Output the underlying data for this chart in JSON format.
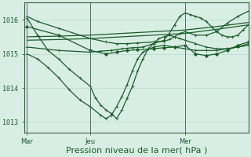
{
  "background_color": "#d8eee4",
  "grid_color": "#b8d8cc",
  "line_color": "#1a5c28",
  "xlabel": "Pression niveau de la mer( hPa )",
  "xlabel_fontsize": 8,
  "yticks": [
    1013,
    1014,
    1015,
    1016
  ],
  "ylim": [
    1012.7,
    1016.5
  ],
  "xtick_labels": [
    "Mar",
    "Jeu",
    "Mer"
  ],
  "xtick_positions": [
    0,
    48,
    120
  ],
  "xlim": [
    -2,
    168
  ],
  "vline_positions": [
    0,
    48,
    120
  ],
  "series": [
    {
      "x": [
        0,
        8,
        16,
        24,
        32,
        40,
        48,
        52,
        56,
        60,
        64,
        68,
        72,
        76,
        80,
        84,
        88,
        92,
        96,
        100,
        104,
        108,
        112,
        116,
        120,
        128,
        136,
        144,
        152,
        160,
        168
      ],
      "y": [
        1016.05,
        1015.55,
        1015.1,
        1014.85,
        1014.55,
        1014.3,
        1014.05,
        1013.7,
        1013.5,
        1013.35,
        1013.25,
        1013.1,
        1013.35,
        1013.7,
        1014.05,
        1014.5,
        1014.85,
        1015.15,
        1015.3,
        1015.45,
        1015.5,
        1015.55,
        1015.5,
        1015.45,
        1015.4,
        1015.3,
        1015.2,
        1015.15,
        1015.15,
        1015.2,
        1015.3
      ],
      "marker": "+"
    },
    {
      "x": [
        0,
        8,
        16,
        24,
        32,
        40,
        48,
        56,
        60,
        64,
        68,
        72,
        76,
        80,
        84,
        88,
        96,
        104,
        112,
        120,
        128,
        136,
        144,
        152,
        160,
        168
      ],
      "y": [
        1015.0,
        1014.85,
        1014.6,
        1014.3,
        1013.95,
        1013.65,
        1013.45,
        1013.2,
        1013.1,
        1013.2,
        1013.45,
        1013.75,
        1014.1,
        1014.5,
        1014.85,
        1015.05,
        1015.2,
        1015.25,
        1015.2,
        1015.15,
        1015.1,
        1015.1,
        1015.1,
        1015.15,
        1015.2,
        1015.25
      ],
      "marker": "+"
    },
    {
      "x": [
        0,
        24,
        48,
        60,
        68,
        76,
        84,
        96,
        104,
        112,
        120,
        128,
        136,
        144,
        152,
        160,
        168
      ],
      "y": [
        1015.8,
        1015.55,
        1015.1,
        1015.0,
        1015.05,
        1015.1,
        1015.12,
        1015.15,
        1015.18,
        1015.2,
        1015.25,
        1015.0,
        1014.95,
        1015.0,
        1015.1,
        1015.25,
        1015.35
      ],
      "marker": "D"
    },
    {
      "x": [
        0,
        24,
        48,
        72,
        96,
        120,
        144,
        168
      ],
      "y": [
        1015.5,
        1015.52,
        1015.55,
        1015.6,
        1015.65,
        1015.7,
        1015.8,
        1015.92
      ],
      "marker": null
    },
    {
      "x": [
        0,
        24,
        48,
        72,
        96,
        120,
        144,
        168
      ],
      "y": [
        1015.4,
        1015.42,
        1015.45,
        1015.5,
        1015.55,
        1015.6,
        1015.72,
        1015.85
      ],
      "marker": null
    },
    {
      "x": [
        0,
        8,
        24,
        48,
        60,
        68,
        76,
        84,
        96,
        104,
        108,
        112,
        116,
        120,
        128,
        136,
        144,
        152,
        160,
        168
      ],
      "y": [
        1016.1,
        1015.95,
        1015.75,
        1015.45,
        1015.35,
        1015.3,
        1015.3,
        1015.32,
        1015.35,
        1015.37,
        1015.42,
        1015.5,
        1015.6,
        1015.65,
        1015.55,
        1015.55,
        1015.65,
        1015.9,
        1016.1,
        1016.25
      ],
      "marker": "+"
    },
    {
      "x": [
        0,
        24,
        48,
        56,
        64,
        72,
        80,
        88,
        96,
        104,
        108,
        112,
        116,
        120,
        124,
        128,
        132,
        136,
        140,
        144,
        148,
        152,
        156,
        160,
        164,
        168
      ],
      "y": [
        1015.2,
        1015.1,
        1015.05,
        1015.08,
        1015.1,
        1015.15,
        1015.18,
        1015.2,
        1015.3,
        1015.4,
        1015.6,
        1015.85,
        1016.1,
        1016.2,
        1016.15,
        1016.1,
        1016.05,
        1015.95,
        1015.8,
        1015.65,
        1015.55,
        1015.5,
        1015.5,
        1015.55,
        1015.7,
        1015.85
      ],
      "marker": "+"
    }
  ],
  "linewidth": 0.9,
  "markersize": 2.2
}
